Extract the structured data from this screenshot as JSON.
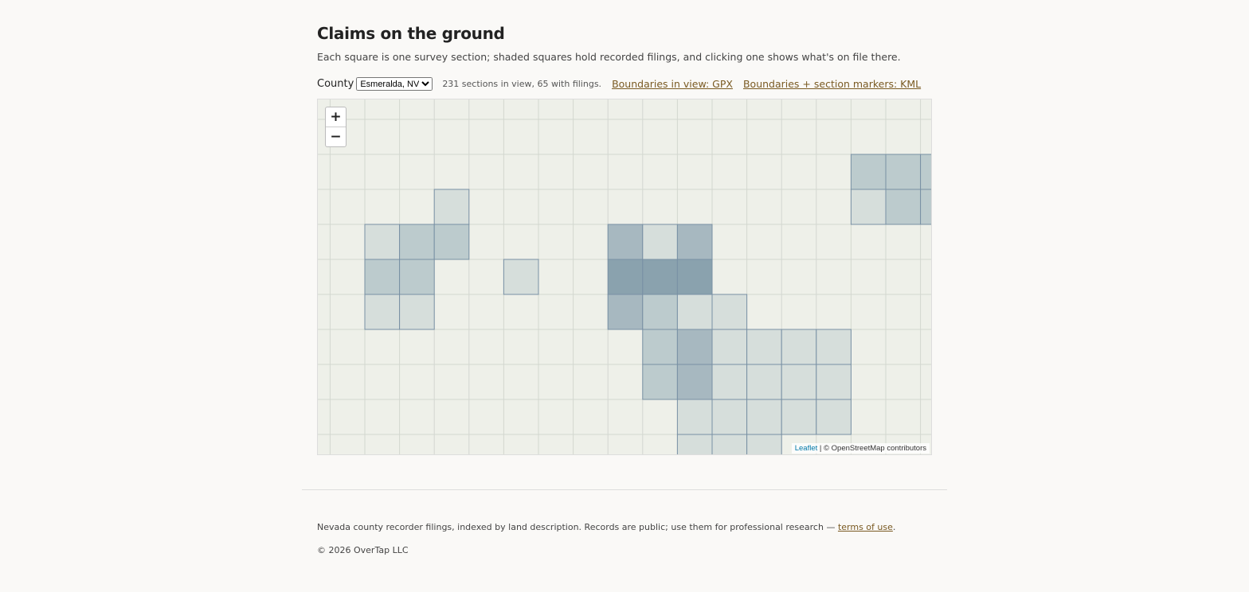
{
  "header": {
    "title": "Claims on the ground",
    "description": "Each square is one survey section; shaded squares hold recorded filings, and clicking one shows what's on file there."
  },
  "controls": {
    "county_label": "County",
    "county_option": "Esmeralda, NV",
    "status": "231 sections in view, 65 with filings.",
    "gpx_link": "Boundaries in view: GPX",
    "kml_link": "Boundaries + section markers: KML"
  },
  "map": {
    "zoom_in": "+",
    "zoom_out": "−",
    "attribution_link": "Leaflet",
    "attribution_text": "| © OpenStreetMap contributors"
  },
  "footer": {
    "note": "Nevada county recorder filings, indexed by land description. Records are public; use them for professional research — ",
    "terms_link": "terms of use",
    "note_end": ".",
    "copyright": "© 2026 OverTap LLC"
  }
}
